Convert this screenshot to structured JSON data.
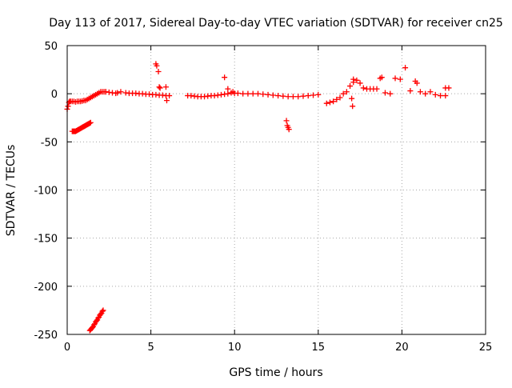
{
  "chart_data": {
    "type": "scatter",
    "title": "Day 113 of 2017, Sidereal Day-to-day VTEC variation (SDTVAR) for receiver cn25",
    "xlabel": "GPS time / hours",
    "ylabel": "SDTVAR / TECUs",
    "xlim": [
      0,
      25
    ],
    "ylim": [
      -250,
      50
    ],
    "xticks": [
      0,
      5,
      10,
      15,
      20,
      25
    ],
    "yticks": [
      -250,
      -200,
      -150,
      -100,
      -50,
      0,
      50
    ],
    "xtick_labels": [
      "0",
      "5",
      "10",
      "15",
      "20",
      "25"
    ],
    "ytick_labels": [
      "-250",
      "-200",
      "-150",
      "-100",
      "-50",
      "0",
      "50"
    ],
    "grid": true,
    "marker": "+",
    "color": "#ff0000",
    "segments": [
      {
        "name": "near-zero-start",
        "x": [
          0.0,
          0.05,
          0.1,
          0.15,
          0.2,
          0.3,
          0.4,
          0.5,
          0.6,
          0.7,
          0.8,
          0.9,
          1.0,
          1.1,
          1.2,
          1.3,
          1.4,
          1.5,
          1.6,
          1.7,
          1.8,
          1.9,
          2.0,
          2.1,
          2.2,
          2.3
        ],
        "y": [
          -16,
          -13,
          -9,
          -8,
          -8,
          -8,
          -8,
          -8.5,
          -8,
          -8,
          -8,
          -7.5,
          -7,
          -7,
          -6,
          -5,
          -4,
          -3,
          -2,
          -1,
          0,
          1,
          2,
          2,
          2,
          2
        ]
      },
      {
        "name": "minus-forty-branch",
        "x": [
          0.3,
          0.35,
          0.4,
          0.45,
          0.5,
          0.55,
          0.6,
          0.65,
          0.7,
          0.75,
          0.8,
          0.85,
          0.9,
          0.95,
          1.0,
          1.05,
          1.1,
          1.15,
          1.2,
          1.25,
          1.3,
          1.35,
          1.4
        ],
        "y": [
          -39,
          -39,
          -39,
          -39,
          -39,
          -38.5,
          -38,
          -37.5,
          -37,
          -36.5,
          -36,
          -35.5,
          -35,
          -34.5,
          -34,
          -33.5,
          -33,
          -32.5,
          -32,
          -31.5,
          -31,
          -30.5,
          -30
        ]
      },
      {
        "name": "minus-two-forty-branch",
        "x": [
          1.35,
          1.4,
          1.45,
          1.5,
          1.55,
          1.6,
          1.65,
          1.7,
          1.75,
          1.8,
          1.85,
          1.9,
          1.95,
          2.0,
          2.05,
          2.1,
          2.15
        ],
        "y": [
          -246,
          -245,
          -244,
          -243,
          -242,
          -240,
          -239,
          -237,
          -236,
          -235,
          -233,
          -232,
          -230,
          -229,
          -228,
          -226,
          -225
        ]
      },
      {
        "name": "first-day-arc",
        "x": [
          2.3,
          2.5,
          2.7,
          2.9,
          3.0,
          3.2,
          3.5,
          3.7,
          3.9,
          4.1,
          4.3,
          4.5,
          4.7,
          4.9,
          5.1,
          5.3,
          5.5,
          5.7,
          5.9,
          6.1
        ],
        "y": [
          2,
          1.5,
          1,
          0.5,
          1,
          2,
          1,
          0.5,
          0.5,
          0.5,
          0,
          0,
          -0.5,
          -0.5,
          -1,
          -1,
          -1.5,
          -1.5,
          -2,
          -2
        ]
      },
      {
        "name": "outliers-near-five",
        "x": [
          5.3,
          5.35,
          5.45,
          5.5,
          5.55,
          5.9,
          5.95
        ],
        "y": [
          31,
          29,
          23,
          7,
          6,
          7,
          -7
        ]
      },
      {
        "name": "middle-arc",
        "x": [
          7.2,
          7.4,
          7.6,
          7.8,
          8.0,
          8.2,
          8.4,
          8.6,
          8.8,
          9.0,
          9.2,
          9.4,
          9.6,
          9.8,
          10.0,
          10.2,
          10.5,
          10.8,
          11.1,
          11.4,
          11.7,
          12.0,
          12.3,
          12.6,
          12.9,
          13.2,
          13.5,
          13.8,
          14.1,
          14.4,
          14.7,
          15.0
        ],
        "y": [
          -2,
          -2,
          -2.5,
          -3,
          -3,
          -3,
          -2.5,
          -2,
          -2,
          -1.5,
          -1,
          -0.5,
          0,
          1,
          0.5,
          0.5,
          0,
          0,
          0,
          0,
          -0.5,
          -1,
          -1.5,
          -2,
          -2.5,
          -3,
          -3,
          -3,
          -2.5,
          -2,
          -1.5,
          -1
        ]
      },
      {
        "name": "outliers-middle",
        "x": [
          9.4,
          9.6,
          9.9,
          13.1,
          13.15,
          13.2,
          13.25
        ],
        "y": [
          17,
          5,
          2,
          -28,
          -33,
          -35,
          -37
        ]
      },
      {
        "name": "late-day-clusters",
        "x": [
          15.5,
          15.7,
          15.9,
          16.1,
          16.3,
          16.5,
          16.7,
          16.9,
          17.1,
          17.3,
          17.5,
          17.7,
          17.9,
          18.1,
          18.3,
          18.5,
          18.7,
          19.0,
          19.3,
          19.6,
          19.9,
          20.2,
          20.5,
          20.8,
          21.1,
          21.4,
          21.7,
          22.0,
          22.3,
          22.6,
          22.8
        ],
        "y": [
          -10,
          -9,
          -8,
          -6,
          -4,
          0,
          2,
          8,
          12,
          14,
          11,
          6,
          5,
          5,
          5,
          5,
          16,
          1,
          0,
          16,
          15,
          27,
          3,
          13,
          2,
          0,
          2,
          -1,
          -2,
          -2,
          6
        ]
      },
      {
        "name": "outliers-late",
        "x": [
          17.0,
          17.05,
          17.1,
          18.8,
          20.9,
          22.6
        ],
        "y": [
          -5,
          -13,
          15,
          17,
          11,
          6
        ]
      }
    ]
  }
}
